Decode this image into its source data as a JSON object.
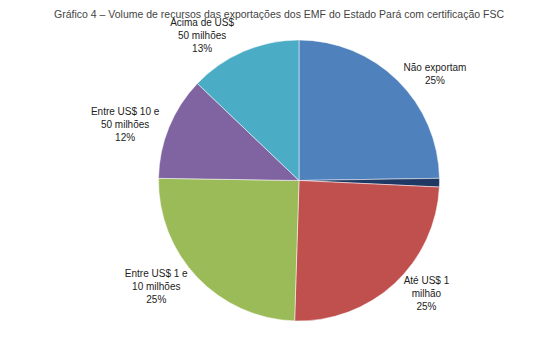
{
  "chart_data": {
    "type": "pie",
    "title": "Gráfico 4 – Volume de recursos das exportações dos EMF do Estado Pará com certificação FSC",
    "categories": [
      "Não exportam\n25%",
      null,
      "Até US$ 1\nmilhão\n25%",
      "Entre US$ 1 e\n10 milhões\n25%",
      "Entre US$ 10 e\n50 milhões\n12%",
      "Acima de US$\n50 milhões\n13%"
    ],
    "values": [
      25,
      1,
      25,
      25,
      12,
      13
    ],
    "colors": [
      "#4F81BD",
      "#1F3864",
      "#C0504D",
      "#9BBB59",
      "#8064A2",
      "#4BACC6"
    ]
  }
}
